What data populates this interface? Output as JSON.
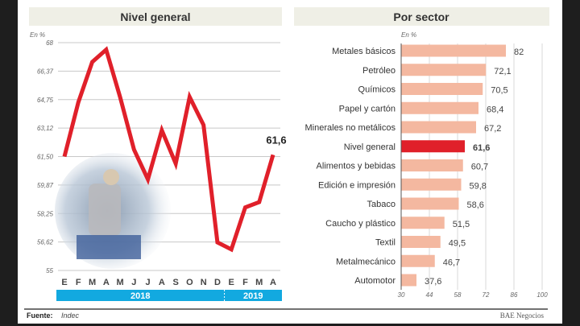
{
  "chart_data": [
    {
      "type": "line",
      "title": "Nivel general",
      "ylabel": "En %",
      "yticks": [
        "55",
        "56,62",
        "58,25",
        "59,87",
        "61,50",
        "63,12",
        "64,75",
        "66,37",
        "68"
      ],
      "ylim": [
        55,
        68
      ],
      "categories": [
        "E",
        "F",
        "M",
        "A",
        "M",
        "J",
        "J",
        "A",
        "S",
        "O",
        "N",
        "D",
        "E",
        "F",
        "M",
        "A"
      ],
      "year_groups": [
        {
          "label": "2018",
          "count": 12
        },
        {
          "label": "2019",
          "count": 4
        }
      ],
      "series": [
        {
          "values": [
            61.5,
            64.6,
            66.9,
            67.6,
            64.9,
            61.9,
            60.2,
            63.0,
            61.1,
            64.9,
            63.3,
            56.6,
            56.2,
            58.6,
            58.9,
            61.6
          ],
          "color": "#e0202a"
        }
      ],
      "end_label": "61,6",
      "grid": true
    },
    {
      "type": "bar",
      "orientation": "horizontal",
      "title": "Por sector",
      "xlabel": "En %",
      "xlim": [
        30,
        100
      ],
      "xticks": [
        "30",
        "44",
        "58",
        "72",
        "86",
        "100"
      ],
      "categories": [
        "Metales básicos",
        "Petróleo",
        "Químicos",
        "Papel y cartón",
        "Minerales no metálicos",
        "Nivel general",
        "Alimentos y bebidas",
        "Edición e impresión",
        "Tabaco",
        "Caucho y plástico",
        "Textil",
        "Metalmecánico",
        "Automotor"
      ],
      "values": [
        82,
        72.1,
        70.5,
        68.4,
        67.2,
        61.6,
        60.7,
        59.8,
        58.6,
        51.5,
        49.5,
        46.7,
        37.6
      ],
      "value_labels": [
        "82",
        "72,1",
        "70,5",
        "68,4",
        "67,2",
        "61,6",
        "60,7",
        "59,8",
        "58,6",
        "51,5",
        "49,5",
        "46,7",
        "37,6"
      ],
      "highlight": "Nivel general",
      "colors": {
        "bar": "#f4b8a0",
        "highlight": "#e0202a"
      }
    }
  ],
  "footer": {
    "source_label": "Fuente:",
    "source": "Indec",
    "credit": "BAE Negocios"
  },
  "colors": {
    "header_bg": "#efefe6",
    "year_bar": "#12a9e0"
  }
}
